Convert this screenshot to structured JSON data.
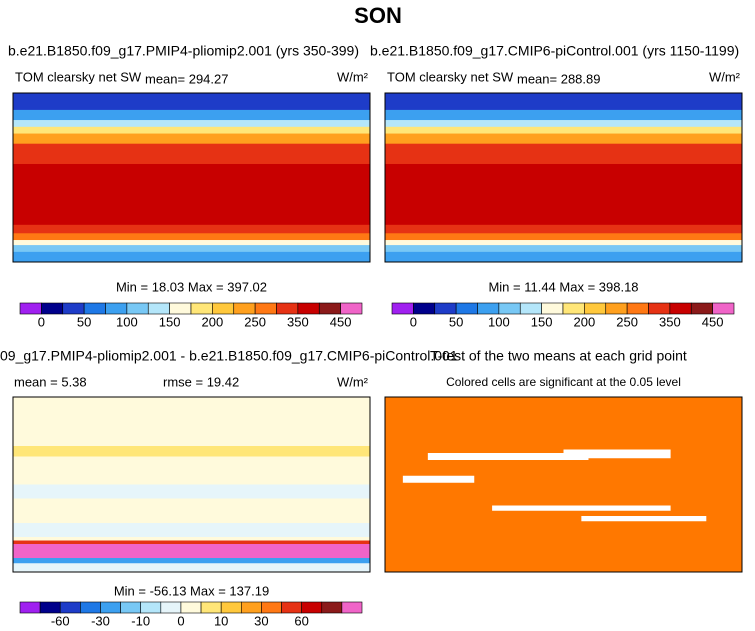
{
  "title": "SON",
  "panels": [
    {
      "title": "b.e21.B1850.f09_g17.PMIP4-pliomip2.001 (yrs 350-399)",
      "left_label": "TOM clearsky net SW",
      "center_label": "mean= 294.27",
      "units": "W/m²",
      "stats": "Min =  18.03 Max = 397.02"
    },
    {
      "title": "b.e21.B1850.f09_g17.CMIP6-piControl.001 (yrs 1150-1199)",
      "left_label": "TOM clearsky net SW",
      "center_label": "mean= 288.89",
      "units": "W/m²",
      "stats": "Min =  11.44 Max = 398.18"
    },
    {
      "title": "09_g17.PMIP4-pliomip2.001 - b.e21.B1850.f09_g17.CMIP6-piControl.001",
      "left_label": "mean =   5.38",
      "center_label": "rmse =  19.42",
      "units": "W/m²",
      "stats": "Min = -56.13 Max = 137.19"
    },
    {
      "title": "T-test of the two means at each grid point",
      "subtitle": "Colored cells are significant at the 0.05 level"
    }
  ],
  "colorbars": [
    {
      "colors": [
        "#a020f0",
        "#00008b",
        "#1e3cc8",
        "#1e78e6",
        "#3ca0f0",
        "#78c8f5",
        "#b4e6fa",
        "#fffadc",
        "#ffe678",
        "#ffc83c",
        "#ffa01e",
        "#ff7814",
        "#e63214",
        "#c80000",
        "#8b1a1a",
        "#f064c8"
      ],
      "labels": [
        "0",
        "50",
        "100",
        "150",
        "200",
        "250",
        "350",
        "450"
      ]
    },
    {
      "colors": [
        "#a020f0",
        "#00008b",
        "#1e3cc8",
        "#1e78e6",
        "#3ca0f0",
        "#78c8f5",
        "#b4e6fa",
        "#fffadc",
        "#ffe678",
        "#ffc83c",
        "#ffa01e",
        "#ff7814",
        "#e63214",
        "#c80000",
        "#8b1a1a",
        "#f064c8"
      ],
      "labels": [
        "0",
        "50",
        "100",
        "150",
        "200",
        "250",
        "350",
        "450"
      ]
    },
    {
      "colors": [
        "#a020f0",
        "#00008b",
        "#1e3cc8",
        "#1e78e6",
        "#3ca0f0",
        "#78c8f5",
        "#b4e6fa",
        "#e6f5fa",
        "#fffadc",
        "#ffe678",
        "#ffc83c",
        "#ffa01e",
        "#ff7814",
        "#e63214",
        "#c80000",
        "#8b1a1a",
        "#f064c8"
      ],
      "labels": [
        "-60",
        "-30",
        "-10",
        "0",
        "10",
        "30",
        "60"
      ]
    }
  ]
}
